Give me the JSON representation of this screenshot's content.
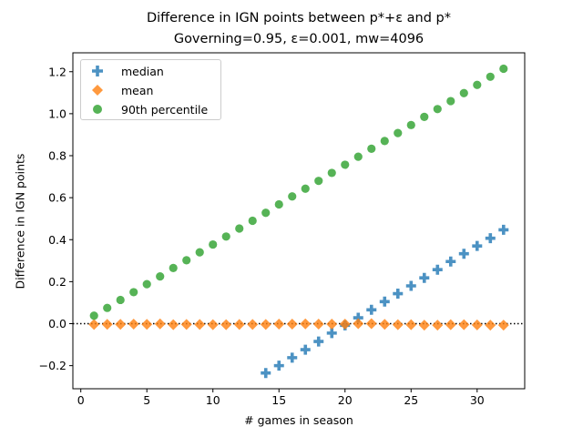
{
  "title": {
    "line1": "Difference in IGN points between p*+ε and p*",
    "line2": "Governing=0.95, ε=0.001, mw=4096"
  },
  "chart_data": {
    "type": "scatter",
    "title": "Difference in IGN points between p*+ε and p*\nGoverning=0.95, ε=0.001, mw=4096",
    "xlabel": "# games in season",
    "ylabel": "Difference in IGN points",
    "xlim": [
      -0.6,
      33.6
    ],
    "ylim": [
      -0.31,
      1.29
    ],
    "xticks": [
      0,
      5,
      10,
      15,
      20,
      25,
      30
    ],
    "yticks": [
      -0.2,
      0.0,
      0.2,
      0.4,
      0.6,
      0.8,
      1.0,
      1.2
    ],
    "ytick_labels": [
      "−0.2",
      "0.0",
      "0.2",
      "0.4",
      "0.6",
      "0.8",
      "1.0",
      "1.2"
    ],
    "grid": false,
    "reference_line": {
      "y": 0,
      "style": "dotted",
      "color": "#000000"
    },
    "legend_position": "top-left",
    "series": [
      {
        "name": "median",
        "marker": "plus",
        "color": "#1f77b4",
        "x": [
          14,
          15,
          16,
          17,
          18,
          19,
          20,
          21,
          22,
          23,
          24,
          25,
          26,
          27,
          28,
          29,
          30,
          31,
          32
        ],
        "y": [
          -0.235,
          -0.2,
          -0.162,
          -0.124,
          -0.085,
          -0.045,
          -0.008,
          0.028,
          0.066,
          0.105,
          0.143,
          0.18,
          0.218,
          0.257,
          0.296,
          0.333,
          0.37,
          0.407,
          0.447
        ]
      },
      {
        "name": "mean",
        "marker": "diamond",
        "color": "#ff7f0e",
        "x": [
          1,
          2,
          3,
          4,
          5,
          6,
          7,
          8,
          9,
          10,
          11,
          12,
          13,
          14,
          15,
          16,
          17,
          18,
          19,
          20,
          21,
          22,
          23,
          24,
          25,
          26,
          27,
          28,
          29,
          30,
          31,
          32
        ],
        "y": [
          -0.004,
          -0.003,
          -0.003,
          -0.002,
          -0.003,
          -0.001,
          -0.005,
          -0.004,
          -0.004,
          -0.005,
          -0.005,
          -0.004,
          -0.004,
          -0.004,
          -0.002,
          -0.002,
          -0.001,
          -0.002,
          -0.002,
          -0.002,
          0.0,
          0.0,
          -0.003,
          -0.005,
          -0.005,
          -0.007,
          -0.007,
          -0.005,
          -0.005,
          -0.006,
          -0.007,
          -0.007
        ]
      },
      {
        "name": "90th percentile",
        "marker": "circle",
        "color": "#2ca02c",
        "x": [
          1,
          2,
          3,
          4,
          5,
          6,
          7,
          8,
          9,
          10,
          11,
          12,
          13,
          14,
          15,
          16,
          17,
          18,
          19,
          20,
          21,
          22,
          23,
          24,
          25,
          26,
          27,
          28,
          29,
          30,
          31,
          32
        ],
        "y": [
          0.038,
          0.075,
          0.113,
          0.15,
          0.188,
          0.225,
          0.265,
          0.302,
          0.34,
          0.377,
          0.415,
          0.453,
          0.49,
          0.528,
          0.568,
          0.606,
          0.643,
          0.68,
          0.718,
          0.757,
          0.795,
          0.833,
          0.87,
          0.908,
          0.946,
          0.985,
          1.022,
          1.06,
          1.098,
          1.137,
          1.176,
          1.214
        ]
      }
    ]
  }
}
